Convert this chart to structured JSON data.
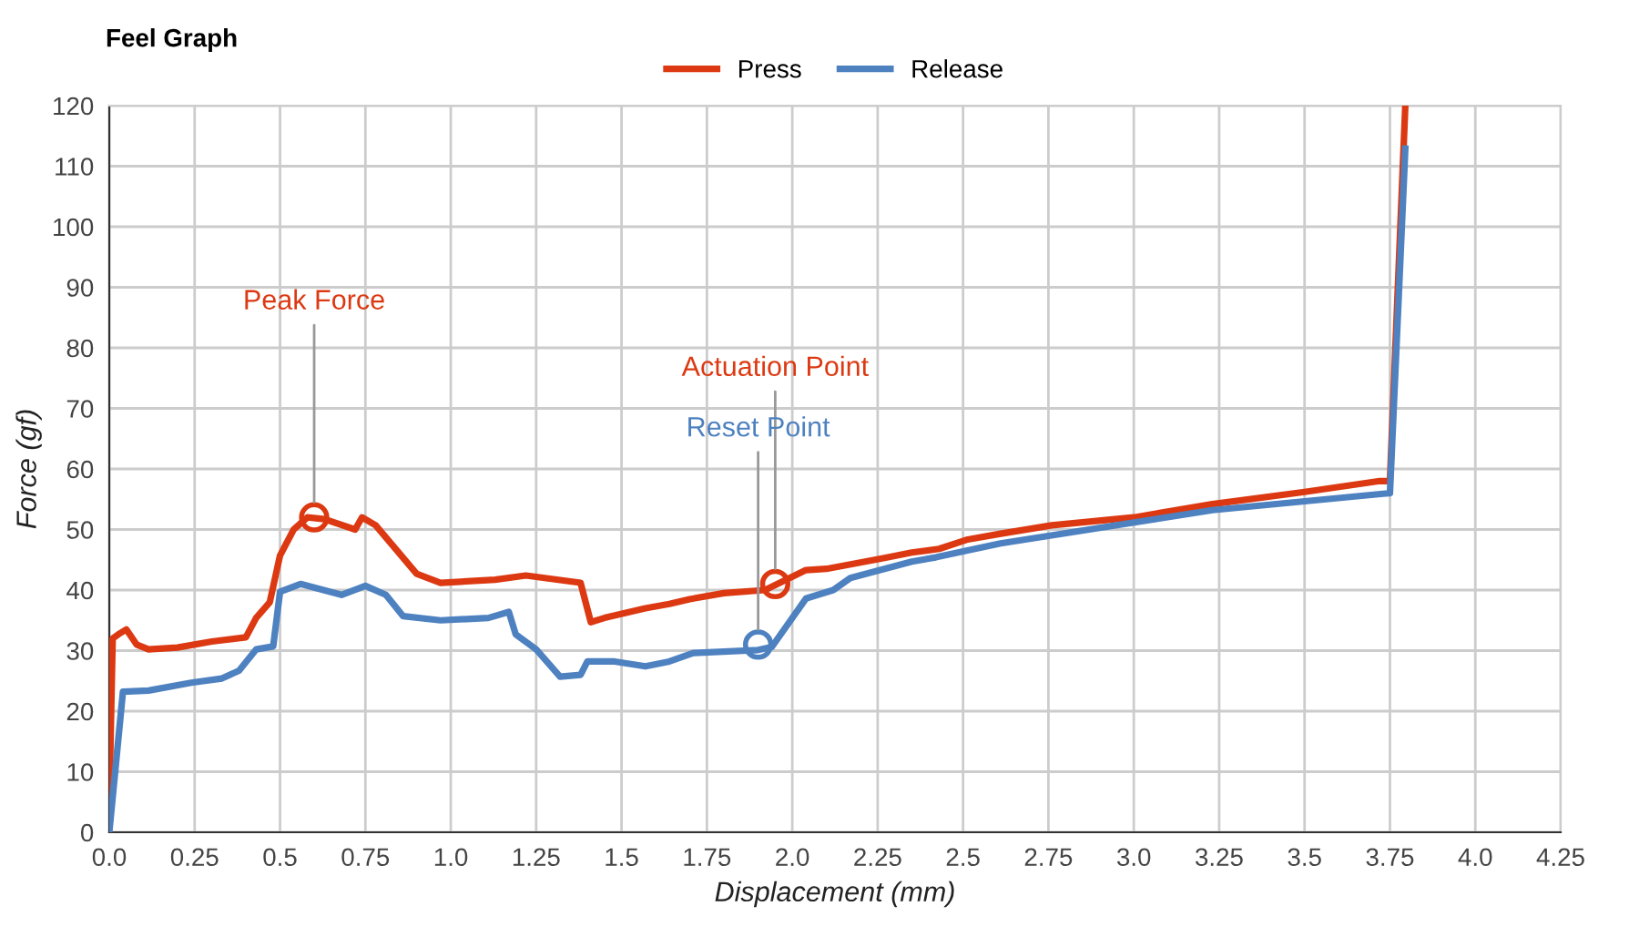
{
  "chart_data": {
    "type": "line",
    "title": "Feel Graph",
    "xlabel": "Displacement (mm)",
    "ylabel": "Force (gf)",
    "xlim": [
      0,
      4.25
    ],
    "ylim": [
      0,
      120
    ],
    "xticks": [
      {
        "value": 0,
        "label": "0.0"
      },
      0.25,
      0.5,
      0.75,
      {
        "value": 1,
        "label": "1.0"
      },
      1.25,
      1.5,
      1.75,
      {
        "value": 2,
        "label": "2.0"
      },
      2.25,
      2.5,
      2.75,
      {
        "value": 3,
        "label": "3.0"
      },
      3.25,
      3.5,
      3.75,
      {
        "value": 4,
        "label": "4.0"
      },
      4.25
    ],
    "yticks": [
      0,
      10,
      20,
      30,
      40,
      50,
      60,
      70,
      80,
      90,
      100,
      110,
      120
    ],
    "grid": true,
    "legend": "top",
    "marker": "none",
    "line_style": "solid",
    "series": [
      {
        "name": "Press",
        "color": "#dc3912",
        "x": [
          0.0,
          0.01,
          0.027,
          0.05,
          0.08,
          0.115,
          0.2,
          0.3,
          0.4,
          0.43,
          0.47,
          0.5,
          0.54,
          0.58,
          0.63,
          0.72,
          0.74,
          0.78,
          0.9,
          0.97,
          1.13,
          1.22,
          1.38,
          1.41,
          1.45,
          1.57,
          1.64,
          1.7,
          1.8,
          1.92,
          2.04,
          2.1,
          2.27,
          2.35,
          2.43,
          2.51,
          2.61,
          2.76,
          3.0,
          3.23,
          3.5,
          3.72,
          3.75,
          3.795
        ],
        "values": [
          5,
          32,
          32.7,
          33.5,
          31,
          30.2,
          30.5,
          31.5,
          32.2,
          35.4,
          38,
          45.7,
          50,
          52,
          51.7,
          50,
          52,
          50.7,
          42.7,
          41.2,
          41.7,
          42.4,
          41.2,
          34.7,
          35.4,
          37,
          37.7,
          38.5,
          39.5,
          40,
          43.3,
          43.5,
          45.3,
          46.2,
          46.8,
          48.3,
          49.3,
          50.7,
          52,
          54.2,
          56.2,
          58,
          58,
          120
        ]
      },
      {
        "name": "Release",
        "color": "#4e81c0",
        "x": [
          0.0,
          0.04,
          0.115,
          0.24,
          0.33,
          0.38,
          0.43,
          0.48,
          0.5,
          0.56,
          0.68,
          0.75,
          0.81,
          0.86,
          0.97,
          1.11,
          1.17,
          1.19,
          1.25,
          1.32,
          1.38,
          1.4,
          1.48,
          1.57,
          1.64,
          1.71,
          1.9,
          1.94,
          2.04,
          2.12,
          2.17,
          2.35,
          2.42,
          2.51,
          2.61,
          3.23,
          3.73,
          3.75,
          3.795
        ],
        "values": [
          0,
          23.2,
          23.4,
          24.7,
          25.4,
          26.7,
          30.2,
          30.7,
          39.7,
          41,
          39.2,
          40.7,
          39.2,
          35.7,
          35,
          35.4,
          36.4,
          32.7,
          30.2,
          25.7,
          26,
          28.2,
          28.2,
          27.4,
          28.2,
          29.6,
          30.1,
          30.6,
          38.6,
          40,
          42,
          44.7,
          45.4,
          46.5,
          47.7,
          53.2,
          55.9,
          56,
          112.9
        ]
      }
    ],
    "annotations": [
      {
        "text": "Peak Force",
        "x": 0.6,
        "y": 52
      },
      {
        "text": "Actuation Point",
        "x": 1.95,
        "y": 41
      },
      {
        "text": "Reset Point",
        "x": 1.9,
        "y": 31
      }
    ]
  }
}
